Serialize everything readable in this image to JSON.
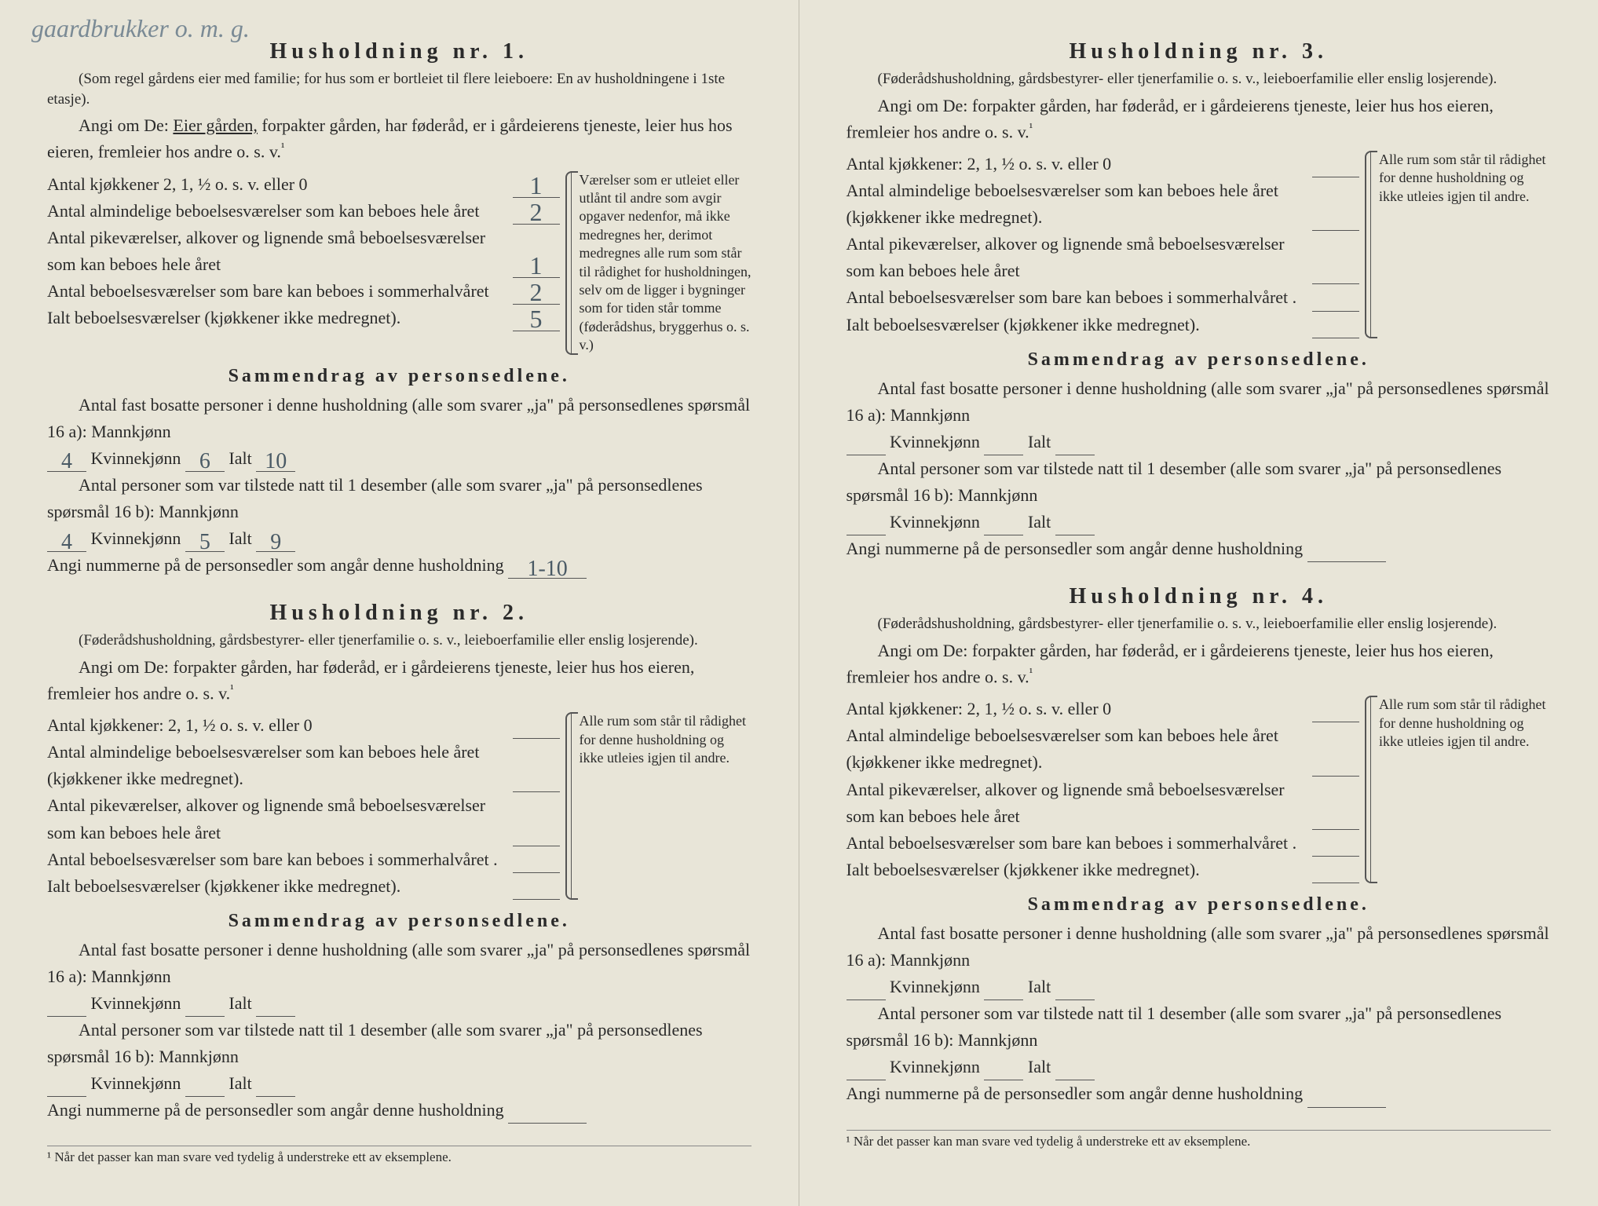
{
  "handwritten_note": "gaardbrukker o. m. g.",
  "households": [
    {
      "title": "Husholdning nr. 1.",
      "subtitle": "(Som regel gårdens eier med familie; for hus som er bortleiet til flere leieboere: En av husholdningene i 1ste etasje).",
      "angi_prefix": "Angi om De: ",
      "angi_underlined": "Eier gården,",
      "angi_rest": " forpakter gården, har føderåd, er i gårdeierens tjeneste, leier hus hos eieren, fremleier hos andre o. s. v.",
      "rooms": {
        "kjokkener_label": "Antal kjøkkener 2, 1, ½ o. s. v. eller 0",
        "kjokkener_val": "1",
        "almindelige_label": "Antal almindelige beboelsesværelser som kan beboes hele året",
        "almindelige_val": "2",
        "pikev_label": "Antal pikeværelser, alkover og lignende små beboelsesværelser som kan beboes hele året",
        "pikev_val": "1",
        "sommer_label": "Antal beboelsesværelser som bare kan beboes i sommerhalvåret",
        "sommer_val": "2",
        "ialt_label": "Ialt beboelsesværelser (kjøkkener ikke medregnet).",
        "ialt_val": "5"
      },
      "right_note": "Værelser som er utleiet eller utlånt til andre som avgir opgaver nedenfor, må ikke medregnes her, derimot medregnes alle rum som står til rådighet for husholdningen, selv om de ligger i bygninger som for tiden står tomme (føderådshus, bryggerhus o. s. v.)",
      "summary_title": "Sammendrag av personsedlene.",
      "line_a": "Antal fast bosatte personer i denne husholdning (alle som svarer „ja\" på personsedlenes spørsmål 16 a): Mannkjønn",
      "mann_a": "4",
      "kvinne_label": "Kvinnekjønn",
      "kvinne_a": "6",
      "ialt_lbl": "Ialt",
      "ialt_a": "10",
      "line_b": "Antal personer som var tilstede natt til 1 desember (alle som svarer „ja\" på personsedlenes spørsmål 16 b): Mannkjønn",
      "mann_b": "4",
      "kvinne_b": "5",
      "ialt_b": "9",
      "numline": "Angi nummerne på de personsedler som angår denne husholdning",
      "numval": "1-10"
    },
    {
      "title": "Husholdning nr. 2.",
      "subtitle": "(Føderådshusholdning, gårdsbestyrer- eller tjenerfamilie o. s. v., leieboerfamilie eller enslig losjerende).",
      "angi_prefix": "Angi om De:  forpakter gården, har føderåd, er i gårdeierens tjeneste, leier hus hos eieren, fremleier hos andre o. s. v.",
      "rooms": {
        "kjokkener_label": "Antal kjøkkener: 2, 1, ½ o. s. v. eller 0",
        "almindelige_label": "Antal almindelige beboelsesværelser som kan beboes hele året (kjøkkener ikke medregnet).",
        "pikev_label": "Antal pikeværelser, alkover og lignende små beboelsesværelser som kan beboes hele året",
        "sommer_label": "Antal beboelsesværelser som bare kan beboes i sommerhalvåret .",
        "ialt_label": "Ialt beboelsesværelser (kjøkkener ikke medregnet)."
      },
      "right_note": "Alle rum som står til rådighet for denne husholdning og ikke utleies igjen til andre.",
      "summary_title": "Sammendrag av personsedlene.",
      "line_a": "Antal fast bosatte personer i denne husholdning (alle som svarer „ja\" på personsedlenes spørsmål 16 a): Mannkjønn",
      "kvinne_label": "Kvinnekjønn",
      "ialt_lbl": "Ialt",
      "line_b": "Antal personer som var tilstede natt til 1 desember (alle som svarer „ja\" på personsedlenes spørsmål 16 b): Mannkjønn",
      "numline": "Angi nummerne på de personsedler som angår denne husholdning"
    },
    {
      "title": "Husholdning nr. 3.",
      "subtitle": "(Føderådshusholdning, gårdsbestyrer- eller tjenerfamilie o. s. v., leieboerfamilie eller enslig losjerende).",
      "angi_prefix": "Angi om De:  forpakter gården, har føderåd, er i gårdeierens tjeneste, leier hus hos eieren, fremleier hos andre o. s. v.",
      "rooms": {
        "kjokkener_label": "Antal kjøkkener: 2, 1, ½ o. s. v. eller 0",
        "almindelige_label": "Antal almindelige beboelsesværelser som kan beboes hele året (kjøkkener ikke medregnet).",
        "pikev_label": "Antal pikeværelser, alkover og lignende små beboelsesværelser som kan beboes hele året",
        "sommer_label": "Antal beboelsesværelser som bare kan beboes i sommerhalvåret .",
        "ialt_label": "Ialt beboelsesværelser (kjøkkener ikke medregnet)."
      },
      "right_note": "Alle rum som står til rådighet for denne husholdning og ikke utleies igjen til andre.",
      "summary_title": "Sammendrag av personsedlene.",
      "line_a": "Antal fast bosatte personer i denne husholdning (alle som svarer „ja\" på personsedlenes spørsmål 16 a): Mannkjønn",
      "kvinne_label": "Kvinnekjønn",
      "ialt_lbl": "Ialt",
      "line_b": "Antal personer som var tilstede natt til 1 desember (alle som svarer „ja\" på personsedlenes spørsmål 16 b): Mannkjønn",
      "numline": "Angi nummerne på de personsedler som angår denne husholdning"
    },
    {
      "title": "Husholdning nr. 4.",
      "subtitle": "(Føderådshusholdning, gårdsbestyrer- eller tjenerfamilie o. s. v., leieboerfamilie eller enslig losjerende).",
      "angi_prefix": "Angi om De:  forpakter gården, har føderåd, er i gårdeierens tjeneste, leier hus hos eieren, fremleier hos andre o. s. v.",
      "rooms": {
        "kjokkener_label": "Antal kjøkkener: 2, 1, ½ o. s. v. eller 0",
        "almindelige_label": "Antal almindelige beboelsesværelser som kan beboes hele året (kjøkkener ikke medregnet).",
        "pikev_label": "Antal pikeværelser, alkover og lignende små beboelsesværelser som kan beboes hele året",
        "sommer_label": "Antal beboelsesværelser som bare kan beboes i sommerhalvåret .",
        "ialt_label": "Ialt beboelsesværelser (kjøkkener ikke medregnet)."
      },
      "right_note": "Alle rum som står til rådighet for denne husholdning og ikke utleies igjen til andre.",
      "summary_title": "Sammendrag av personsedlene.",
      "line_a": "Antal fast bosatte personer i denne husholdning (alle som svarer „ja\" på personsedlenes spørsmål 16 a): Mannkjønn",
      "kvinne_label": "Kvinnekjønn",
      "ialt_lbl": "Ialt",
      "line_b": "Antal personer som var tilstede natt til 1 desember (alle som svarer „ja\" på personsedlenes spørsmål 16 b): Mannkjønn",
      "numline": "Angi nummerne på de personsedler som angår denne husholdning"
    }
  ],
  "footnote": "¹  Når det passer kan man svare ved tydelig å understreke ett av eksemplene.",
  "sup1": "¹"
}
